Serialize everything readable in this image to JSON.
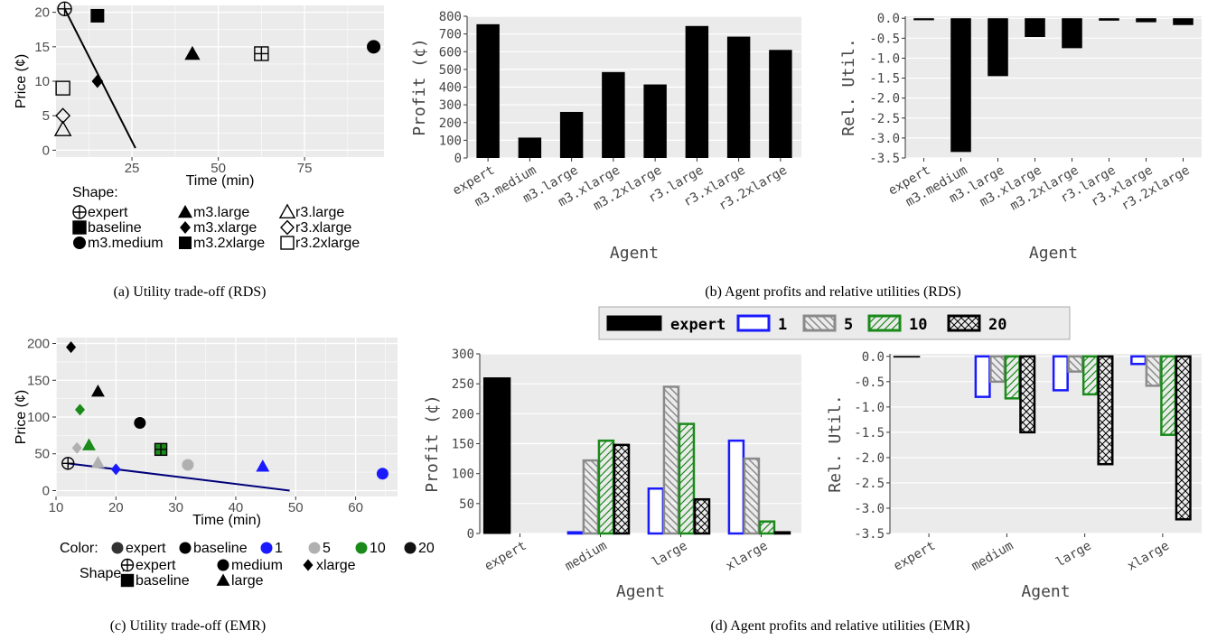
{
  "chart_data": [
    {
      "id": "a",
      "type": "scatter",
      "caption": "(a) Utility trade-off (RDS)",
      "xlabel": "Time (min)",
      "ylabel": "Price (¢)",
      "xlim": [
        3,
        98
      ],
      "ylim": [
        -1,
        21
      ],
      "xticks": [
        25,
        50,
        75
      ],
      "yticks": [
        0,
        5,
        10,
        15,
        20
      ],
      "grid": true,
      "legend_title": "Shape:",
      "legend_position": "bottom",
      "legend": [
        {
          "label": "expert",
          "shape": "circle-plus"
        },
        {
          "label": "m3.large",
          "shape": "triangle"
        },
        {
          "label": "r3.large",
          "shape": "triangle-open"
        },
        {
          "label": "baseline",
          "shape": "square-plus"
        },
        {
          "label": "m3.xlarge",
          "shape": "diamond"
        },
        {
          "label": "r3.xlarge",
          "shape": "diamond-open"
        },
        {
          "label": "m3.medium",
          "shape": "circle"
        },
        {
          "label": "m3.2xlarge",
          "shape": "square"
        },
        {
          "label": "r3.2xlarge",
          "shape": "square-open"
        }
      ],
      "points": [
        {
          "agent": "expert",
          "x": 5.5,
          "y": 20.5,
          "shape": "circle-plus",
          "color": "#000000"
        },
        {
          "agent": "m3.2xlarge",
          "x": 15,
          "y": 19.5,
          "shape": "square",
          "color": "#000000"
        },
        {
          "agent": "m3.large",
          "x": 42.5,
          "y": 14,
          "shape": "triangle",
          "color": "#000000"
        },
        {
          "agent": "baseline",
          "x": 62.5,
          "y": 14,
          "shape": "square-plus",
          "color": "#000000"
        },
        {
          "agent": "m3.medium",
          "x": 95,
          "y": 15,
          "shape": "circle",
          "color": "#000000"
        },
        {
          "agent": "m3.xlarge",
          "x": 15,
          "y": 10,
          "shape": "diamond",
          "color": "#000000"
        },
        {
          "agent": "r3.2xlarge",
          "x": 5,
          "y": 9,
          "shape": "square-open",
          "color": "#000000"
        },
        {
          "agent": "r3.xlarge",
          "x": 5,
          "y": 5,
          "shape": "diamond-open",
          "color": "#000000"
        },
        {
          "agent": "r3.large",
          "x": 5,
          "y": 3,
          "shape": "triangle-open",
          "color": "#000000"
        }
      ],
      "line": {
        "x": [
          5.5,
          26
        ],
        "y": [
          20.5,
          0.3
        ],
        "color": "#000000"
      }
    },
    {
      "id": "b1",
      "type": "bar",
      "xlabel": "Agent",
      "ylabel": "Profit (¢)",
      "ylim": [
        0,
        800
      ],
      "yticks": [
        0,
        100,
        200,
        300,
        400,
        500,
        600,
        700,
        800
      ],
      "categories": [
        "expert",
        "m3.medium",
        "m3.large",
        "m3.xlarge",
        "m3.2xlarge",
        "r3.large",
        "r3.xlarge",
        "r3.2xlarge"
      ],
      "values": [
        755,
        115,
        260,
        485,
        415,
        745,
        685,
        610
      ],
      "grid": true
    },
    {
      "id": "b2",
      "type": "bar",
      "xlabel": "Agent",
      "ylabel": "Rel. Util.",
      "ylim": [
        -3.5,
        0.05
      ],
      "yticks": [
        0.0,
        -0.5,
        -1.0,
        -1.5,
        -2.0,
        -2.5,
        -3.0,
        -3.5
      ],
      "categories": [
        "expert",
        "m3.medium",
        "m3.large",
        "m3.xlarge",
        "m3.2xlarge",
        "r3.large",
        "r3.xlarge",
        "r3.2xlarge"
      ],
      "values": [
        -0.05,
        -3.35,
        -1.45,
        -0.47,
        -0.75,
        -0.06,
        -0.1,
        -0.17
      ],
      "grid": true
    },
    {
      "id": "b_caption",
      "type": "bar",
      "caption": "(b) Agent profits and relative utilities (RDS)"
    },
    {
      "id": "c",
      "type": "scatter",
      "caption": "(c) Utility trade-off (EMR)",
      "xlabel": "Time (min)",
      "ylabel": "Price (¢)",
      "xlim": [
        10,
        67
      ],
      "ylim": [
        -8,
        208
      ],
      "xticks": [
        10,
        20,
        30,
        40,
        50,
        60
      ],
      "yticks": [
        0,
        50,
        100,
        150,
        200
      ],
      "grid": true,
      "legend_color_title": "Color:",
      "legend_color": [
        {
          "label": "expert",
          "color": "#333333"
        },
        {
          "label": "baseline",
          "color": "#000000"
        },
        {
          "label": "1",
          "color": "#1a1aff"
        },
        {
          "label": "5",
          "color": "#b0b0b0"
        },
        {
          "label": "10",
          "color": "#1a8a1a"
        },
        {
          "label": "20",
          "color": "#111111"
        }
      ],
      "legend_shape_title": "Shape:",
      "legend_shape": [
        {
          "label": "expert",
          "shape": "circle-plus"
        },
        {
          "label": "medium",
          "shape": "circle"
        },
        {
          "label": "xlarge",
          "shape": "diamond"
        },
        {
          "label": "baseline",
          "shape": "square-plus"
        },
        {
          "label": "large",
          "shape": "triangle"
        }
      ],
      "points": [
        {
          "x": 12.5,
          "y": 195,
          "shape": "diamond",
          "color": "#000000"
        },
        {
          "x": 17,
          "y": 135,
          "shape": "triangle",
          "color": "#000000"
        },
        {
          "x": 14,
          "y": 110,
          "shape": "diamond",
          "color": "#1a8a1a"
        },
        {
          "x": 24,
          "y": 92,
          "shape": "circle",
          "color": "#000000"
        },
        {
          "x": 13.5,
          "y": 58,
          "shape": "diamond",
          "color": "#b0b0b0"
        },
        {
          "x": 15.5,
          "y": 62,
          "shape": "triangle",
          "color": "#1a8a1a"
        },
        {
          "x": 27.5,
          "y": 56,
          "shape": "square-plus",
          "color": "#1a8a1a"
        },
        {
          "x": 17,
          "y": 38,
          "shape": "triangle",
          "color": "#b0b0b0"
        },
        {
          "x": 32,
          "y": 35,
          "shape": "circle",
          "color": "#b0b0b0"
        },
        {
          "x": 12,
          "y": 37,
          "shape": "circle-plus",
          "color": "#000000"
        },
        {
          "x": 20,
          "y": 29,
          "shape": "diamond",
          "color": "#1a1aff"
        },
        {
          "x": 44.5,
          "y": 33,
          "shape": "triangle",
          "color": "#1a1aff"
        },
        {
          "x": 64.5,
          "y": 23,
          "shape": "circle",
          "color": "#1a1aff"
        }
      ],
      "line": {
        "x": [
          12,
          49
        ],
        "y": [
          37,
          0
        ],
        "color": "#00007a"
      }
    },
    {
      "id": "d_legend",
      "type": "bar",
      "legend": [
        {
          "label": "expert",
          "fill": "#000000",
          "hatch": "none",
          "edge": "#000000"
        },
        {
          "label": "1",
          "fill": "#ffffff",
          "hatch": "none",
          "edge": "#1a1aff"
        },
        {
          "label": "5",
          "fill": "#ffffff",
          "hatch": "backslash",
          "edge": "#8a8a8a"
        },
        {
          "label": "10",
          "fill": "#ffffff",
          "hatch": "slash",
          "edge": "#1a8a1a"
        },
        {
          "label": "20",
          "fill": "#ffffff",
          "hatch": "cross",
          "edge": "#000000"
        }
      ]
    },
    {
      "id": "d1",
      "type": "bar",
      "xlabel": "Agent",
      "ylabel": "Profit (¢)",
      "ylim": [
        0,
        300
      ],
      "yticks": [
        0,
        50,
        100,
        150,
        200,
        250,
        300
      ],
      "categories": [
        "expert",
        "medium",
        "large",
        "xlarge"
      ],
      "series": [
        {
          "name": "expert",
          "values": [
            260,
            null,
            null,
            null
          ]
        },
        {
          "name": "1",
          "values": [
            null,
            2,
            75,
            155
          ]
        },
        {
          "name": "5",
          "values": [
            null,
            122,
            245,
            125
          ]
        },
        {
          "name": "10",
          "values": [
            null,
            155,
            183,
            20
          ]
        },
        {
          "name": "20",
          "values": [
            null,
            148,
            57,
            2
          ]
        }
      ],
      "grid": true
    },
    {
      "id": "d2",
      "type": "bar",
      "xlabel": "Agent",
      "ylabel": "Rel. Util.",
      "ylim": [
        -3.5,
        0.05
      ],
      "yticks": [
        0.0,
        -0.5,
        -1.0,
        -1.5,
        -2.0,
        -2.5,
        -3.0,
        -3.5
      ],
      "categories": [
        "expert",
        "medium",
        "large",
        "xlarge"
      ],
      "series": [
        {
          "name": "expert",
          "values": [
            -0.01,
            null,
            null,
            null
          ]
        },
        {
          "name": "1",
          "values": [
            null,
            -0.8,
            -0.67,
            -0.15
          ]
        },
        {
          "name": "5",
          "values": [
            null,
            -0.5,
            -0.3,
            -0.58
          ]
        },
        {
          "name": "10",
          "values": [
            null,
            -0.83,
            -0.75,
            -1.55
          ]
        },
        {
          "name": "20",
          "values": [
            null,
            -1.5,
            -2.13,
            -3.22
          ]
        }
      ],
      "grid": true
    },
    {
      "id": "d_caption",
      "type": "bar",
      "caption": "(d) Agent profits and relative utilities (EMR)"
    }
  ]
}
